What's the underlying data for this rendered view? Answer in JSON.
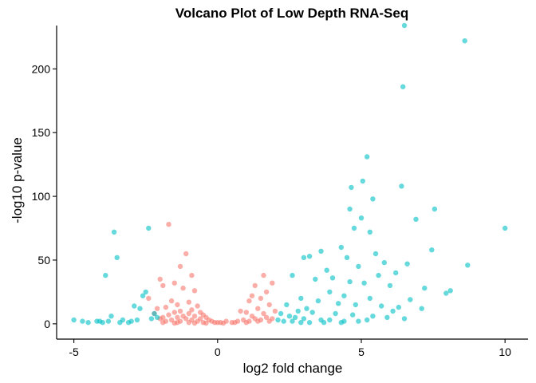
{
  "chart_data": {
    "type": "scatter",
    "title": "Volcano Plot of Low Depth RNA-Seq",
    "xlabel": "log2 fold change",
    "ylabel": "-log10 p-value",
    "xlim": [
      -5.6,
      10.8
    ],
    "ylim": [
      -12,
      234
    ],
    "xticks": [
      -5,
      0,
      5,
      10
    ],
    "xtick_labels": [
      "-5",
      "0",
      "5",
      "10"
    ],
    "yticks": [
      0,
      50,
      100,
      150,
      200
    ],
    "ytick_labels": [
      "0",
      "50",
      "100",
      "150",
      "200"
    ],
    "grid": false,
    "legend": "none",
    "point_opacity": 0.6,
    "series": [
      {
        "color": "#F8766D",
        "points": [
          [
            -1.7,
            78
          ],
          [
            -1.1,
            55
          ],
          [
            -1.3,
            45
          ],
          [
            -0.9,
            38
          ],
          [
            -1.5,
            32
          ],
          [
            -2.0,
            35
          ],
          [
            -1.9,
            30
          ],
          [
            -1.2,
            28
          ],
          [
            -0.8,
            26
          ],
          [
            -2.4,
            20
          ],
          [
            -1.6,
            18
          ],
          [
            -1.0,
            17
          ],
          [
            -1.4,
            15
          ],
          [
            -0.7,
            14
          ],
          [
            -1.8,
            13
          ],
          [
            -2.1,
            12
          ],
          [
            -0.9,
            11
          ],
          [
            -1.3,
            10
          ],
          [
            -0.6,
            9
          ],
          [
            -1.5,
            9
          ],
          [
            -2.2,
            8
          ],
          [
            -1.0,
            8
          ],
          [
            -0.5,
            7
          ],
          [
            -1.7,
            7
          ],
          [
            -1.2,
            6
          ],
          [
            -0.8,
            6
          ],
          [
            -1.9,
            5
          ],
          [
            -0.4,
            5
          ],
          [
            -1.4,
            5
          ],
          [
            -1.1,
            4
          ],
          [
            -0.6,
            4
          ],
          [
            -2.0,
            4
          ],
          [
            -0.3,
            3
          ],
          [
            -1.6,
            3
          ],
          [
            -0.9,
            3
          ],
          [
            -0.2,
            2
          ],
          [
            -1.3,
            2
          ],
          [
            -0.7,
            2
          ],
          [
            -1.8,
            2
          ],
          [
            -0.1,
            1
          ],
          [
            -0.5,
            1
          ],
          [
            -1.0,
            1
          ],
          [
            -1.4,
            1
          ],
          [
            -1.9,
            1
          ],
          [
            0.0,
            1
          ],
          [
            0.1,
            1
          ],
          [
            0.3,
            2
          ],
          [
            0.5,
            1
          ],
          [
            0.7,
            2
          ],
          [
            0.9,
            3
          ],
          [
            1.1,
            2
          ],
          [
            1.3,
            4
          ],
          [
            1.5,
            3
          ],
          [
            1.7,
            5
          ],
          [
            1.9,
            4
          ],
          [
            0.2,
            0.5
          ],
          [
            0.6,
            1
          ],
          [
            1.0,
            1
          ],
          [
            1.4,
            2
          ],
          [
            1.8,
            2
          ],
          [
            1.2,
            6
          ],
          [
            1.6,
            8
          ],
          [
            1.0,
            9
          ],
          [
            1.4,
            12
          ],
          [
            1.8,
            15
          ],
          [
            1.5,
            20
          ],
          [
            1.1,
            18
          ],
          [
            1.7,
            25
          ],
          [
            1.3,
            30
          ],
          [
            1.9,
            32
          ],
          [
            1.6,
            38
          ],
          [
            1.2,
            22
          ],
          [
            0.8,
            10
          ],
          [
            2.0,
            10
          ],
          [
            -0.4,
            0.5
          ],
          [
            -0.8,
            0.5
          ],
          [
            -1.5,
            0.5
          ]
        ]
      },
      {
        "color": "#00BFC4",
        "points": [
          [
            6.5,
            234
          ],
          [
            8.6,
            222
          ],
          [
            6.45,
            186
          ],
          [
            5.2,
            131
          ],
          [
            5.05,
            112
          ],
          [
            6.4,
            108
          ],
          [
            4.65,
            107
          ],
          [
            5.4,
            98
          ],
          [
            4.6,
            90
          ],
          [
            7.55,
            90
          ],
          [
            5.0,
            83
          ],
          [
            6.9,
            82
          ],
          [
            4.75,
            75
          ],
          [
            5.3,
            72
          ],
          [
            10.0,
            75
          ],
          [
            7.45,
            58
          ],
          [
            4.3,
            60
          ],
          [
            3.6,
            57
          ],
          [
            5.5,
            55
          ],
          [
            4.5,
            52
          ],
          [
            3.2,
            53
          ],
          [
            3.0,
            52
          ],
          [
            5.8,
            48
          ],
          [
            6.6,
            47
          ],
          [
            8.7,
            46
          ],
          [
            4.9,
            45
          ],
          [
            3.8,
            42
          ],
          [
            6.2,
            40
          ],
          [
            5.6,
            38
          ],
          [
            4.0,
            36
          ],
          [
            2.6,
            38
          ],
          [
            3.4,
            35
          ],
          [
            4.6,
            33
          ],
          [
            5.1,
            32
          ],
          [
            6.0,
            30
          ],
          [
            7.2,
            28
          ],
          [
            8.1,
            26
          ],
          [
            7.95,
            24
          ],
          [
            3.9,
            25
          ],
          [
            4.4,
            22
          ],
          [
            5.3,
            20
          ],
          [
            6.7,
            19
          ],
          [
            2.9,
            20
          ],
          [
            3.5,
            18
          ],
          [
            4.2,
            16
          ],
          [
            4.8,
            15
          ],
          [
            5.7,
            14
          ],
          [
            6.3,
            13
          ],
          [
            7.1,
            12
          ],
          [
            6.1,
            10
          ],
          [
            3.1,
            12
          ],
          [
            2.4,
            15
          ],
          [
            2.8,
            10
          ],
          [
            3.3,
            9
          ],
          [
            4.1,
            8
          ],
          [
            4.7,
            7
          ],
          [
            5.4,
            6
          ],
          [
            5.9,
            5
          ],
          [
            6.5,
            4
          ],
          [
            2.2,
            8
          ],
          [
            2.5,
            6
          ],
          [
            2.7,
            5
          ],
          [
            3.0,
            4
          ],
          [
            3.6,
            3
          ],
          [
            3.9,
            3
          ],
          [
            4.4,
            2
          ],
          [
            4.9,
            2
          ],
          [
            5.2,
            3
          ],
          [
            2.1,
            3
          ],
          [
            2.3,
            2
          ],
          [
            2.6,
            2
          ],
          [
            2.9,
            1
          ],
          [
            3.2,
            1
          ],
          [
            3.7,
            1
          ],
          [
            4.3,
            1
          ],
          [
            -3.6,
            72
          ],
          [
            -3.5,
            52
          ],
          [
            -3.9,
            38
          ],
          [
            -2.4,
            75
          ],
          [
            -2.5,
            25
          ],
          [
            -2.6,
            22
          ],
          [
            -2.9,
            14
          ],
          [
            -2.7,
            12
          ],
          [
            -3.7,
            6
          ],
          [
            -4.2,
            2
          ],
          [
            -4.5,
            1
          ],
          [
            -5.0,
            3
          ],
          [
            -4.7,
            2
          ],
          [
            -4.0,
            1
          ],
          [
            -3.4,
            1
          ],
          [
            -3.0,
            2
          ],
          [
            -2.8,
            3
          ],
          [
            -2.3,
            4
          ],
          [
            -2.1,
            5
          ],
          [
            -3.3,
            3
          ],
          [
            -3.8,
            2
          ],
          [
            -2.2,
            8
          ],
          [
            -3.1,
            1
          ],
          [
            -4.1,
            2
          ]
        ]
      }
    ]
  }
}
